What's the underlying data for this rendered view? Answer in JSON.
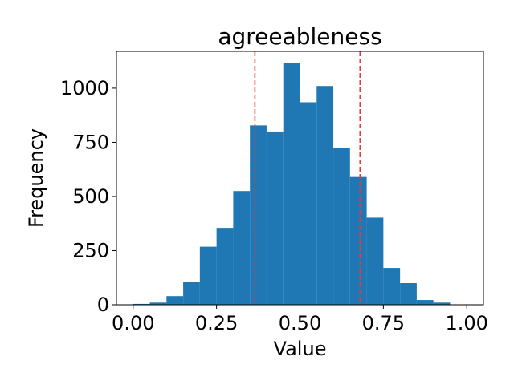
{
  "chart_data": {
    "type": "bar",
    "title": "agreeableness",
    "xlabel": "Value",
    "ylabel": "Frequency",
    "xlim": [
      -0.05,
      1.05
    ],
    "ylim": [
      0,
      1170
    ],
    "xticks": [
      "0.00",
      "0.25",
      "0.50",
      "0.75",
      "1.00"
    ],
    "xtick_values": [
      0,
      0.25,
      0.5,
      0.75,
      1.0
    ],
    "yticks": [
      "0",
      "250",
      "500",
      "750",
      "1000"
    ],
    "ytick_values": [
      0,
      250,
      500,
      750,
      1000
    ],
    "bin_edges": [
      0.0,
      0.05,
      0.1,
      0.15,
      0.2,
      0.25,
      0.3,
      0.35,
      0.4,
      0.45,
      0.5,
      0.55,
      0.6,
      0.65,
      0.7,
      0.75,
      0.8,
      0.85,
      0.9,
      0.95,
      1.0
    ],
    "values": [
      4,
      10,
      40,
      105,
      268,
      355,
      525,
      828,
      800,
      1118,
      935,
      1010,
      725,
      590,
      402,
      170,
      100,
      22,
      10,
      0
    ],
    "vlines": [
      0.365,
      0.68
    ],
    "bar_color": "#1f77b4",
    "vline_color": "#e8383c",
    "grid": false
  }
}
